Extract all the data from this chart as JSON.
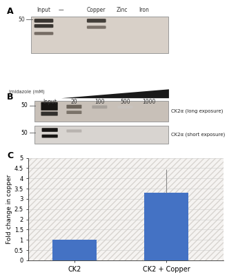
{
  "panel_C": {
    "categories": [
      "CK2",
      "CK2 + Copper"
    ],
    "values": [
      1.0,
      3.3
    ],
    "errors": [
      0.0,
      1.15
    ],
    "bar_color": "#4472C4",
    "ylabel": "Fold change in copper",
    "ylim": [
      0,
      5
    ],
    "yticks": [
      0,
      0.5,
      1,
      1.5,
      2,
      2.5,
      3,
      3.5,
      4,
      4.5,
      5
    ],
    "ytick_labels": [
      "0",
      "0.5",
      "1",
      "1.5",
      "2",
      "2.5",
      "3",
      "3.5",
      "4",
      "4.5",
      "5"
    ]
  },
  "panel_A": {
    "label": "A",
    "col_labels": [
      "Input",
      "—",
      "Copper",
      "Zinc",
      "Iron"
    ],
    "marker_label": "50",
    "bg_color": "#d8d0c8",
    "band_color_dark": "#282420",
    "band_color_mid": "#6a6058"
  },
  "panel_B": {
    "label": "B",
    "row_label": "Imidazole (mM)",
    "col_labels": [
      "Input",
      "20",
      "100",
      "500",
      "1000"
    ],
    "marker_label": "50",
    "bg_color_top": "#c8c0b8",
    "bg_color_bot": "#d8d4d0",
    "annotation1": "CK2α (long exposure)",
    "annotation2": "CK2α (short exposure)"
  },
  "figure_bg": "#ffffff"
}
